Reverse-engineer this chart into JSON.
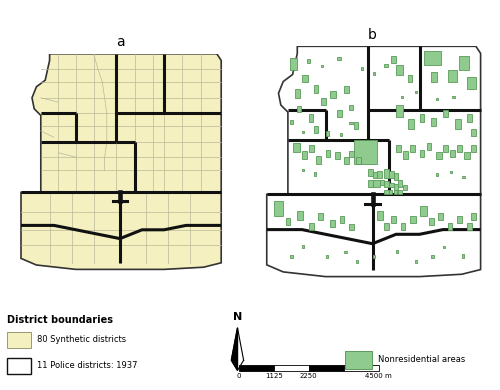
{
  "title_a": "a",
  "title_b": "b",
  "background_color": "#ffffff",
  "synthetic_fill": "#f5f0c0",
  "synthetic_edge": "#b8b899",
  "police_edge": "#111111",
  "nonres_fill": "#8fca8f",
  "nonres_edge": "#5a9a5a",
  "outer_border": "#333333",
  "legend_title": "District boundaries",
  "legend_synthetic": "80 Synthetic districts",
  "legend_police": "11 Police districts: 1937",
  "legend_nonres": "Nonresidential areas",
  "north_label": "N",
  "scalebar_ticks": [
    "0",
    "1125",
    "2250",
    "4500 m"
  ]
}
